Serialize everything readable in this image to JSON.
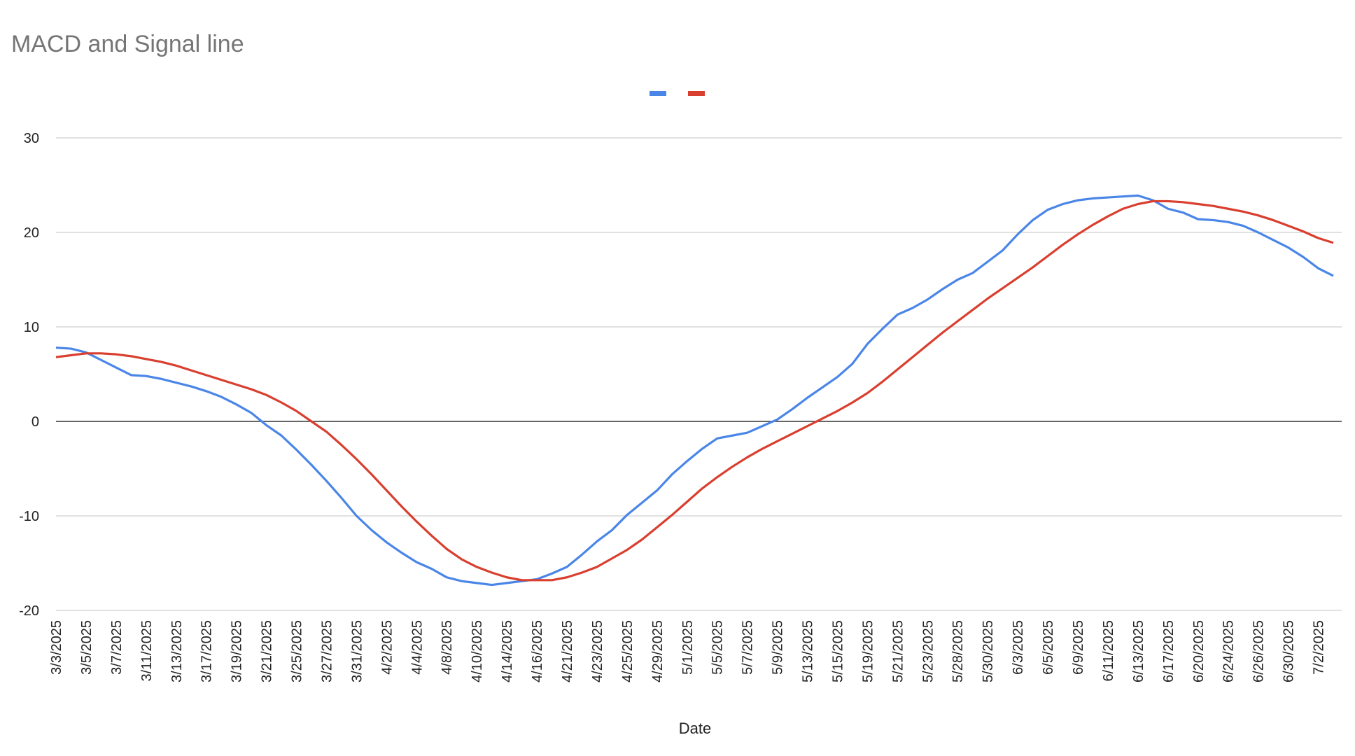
{
  "chart_data": {
    "type": "line",
    "title": "MACD and Signal line",
    "x_label": "Date",
    "categories": [
      "3/3/2025",
      null,
      "3/5/2025",
      null,
      "3/7/2025",
      null,
      "3/11/2025",
      null,
      "3/13/2025",
      null,
      "3/17/2025",
      null,
      "3/19/2025",
      null,
      "3/21/2025",
      null,
      "3/25/2025",
      null,
      "3/27/2025",
      null,
      "3/31/2025",
      null,
      "4/2/2025",
      null,
      "4/4/2025",
      null,
      "4/8/2025",
      null,
      "4/10/2025",
      null,
      "4/14/2025",
      null,
      "4/16/2025",
      null,
      "4/21/2025",
      null,
      "4/23/2025",
      null,
      "4/25/2025",
      null,
      "4/29/2025",
      null,
      "5/1/2025",
      null,
      "5/5/2025",
      null,
      "5/7/2025",
      null,
      "5/9/2025",
      null,
      "5/13/2025",
      null,
      "5/15/2025",
      null,
      "5/19/2025",
      null,
      "5/21/2025",
      null,
      "5/23/2025",
      null,
      "5/28/2025",
      null,
      "5/30/2025",
      null,
      "6/3/2025",
      null,
      "6/5/2025",
      null,
      "6/9/2025",
      null,
      "6/11/2025",
      null,
      "6/13/2025",
      null,
      "6/17/2025",
      null,
      "6/20/2025",
      null,
      "6/24/2025",
      null,
      "6/26/2025",
      null,
      "6/30/2025",
      null,
      "7/2/2025",
      null
    ],
    "series": [
      {
        "color": "#4a86e8",
        "values": [
          7.8,
          7.7,
          7.3,
          6.5,
          5.7,
          4.9,
          4.8,
          4.5,
          4.1,
          3.7,
          3.2,
          2.6,
          1.8,
          0.9,
          -0.4,
          -1.5,
          -3.0,
          -4.6,
          -6.3,
          -8.1,
          -10.0,
          -11.5,
          -12.8,
          -13.9,
          -14.9,
          -15.6,
          -16.5,
          -16.9,
          -17.1,
          -17.3,
          -17.1,
          -16.9,
          -16.7,
          -16.1,
          -15.4,
          -14.1,
          -12.7,
          -11.5,
          -9.9,
          -8.6,
          -7.3,
          -5.6,
          -4.2,
          -2.9,
          -1.8,
          -1.5,
          -1.2,
          -0.5,
          0.2,
          1.3,
          2.5,
          3.6,
          4.7,
          6.1,
          8.2,
          9.8,
          11.3,
          12.0,
          12.9,
          14.0,
          15.0,
          15.7,
          16.9,
          18.1,
          19.8,
          21.3,
          22.4,
          23.0,
          23.4,
          23.6,
          23.7,
          23.8,
          23.9,
          23.4,
          22.5,
          22.1,
          21.4,
          21.3,
          21.1,
          20.7,
          20.0,
          19.2,
          18.4,
          17.4,
          16.2,
          15.4
        ]
      },
      {
        "color": "#d93f2f",
        "values": [
          6.8,
          7.0,
          7.2,
          7.2,
          7.1,
          6.9,
          6.6,
          6.3,
          5.9,
          5.4,
          4.9,
          4.4,
          3.9,
          3.4,
          2.8,
          2.0,
          1.1,
          0.0,
          -1.1,
          -2.5,
          -4.0,
          -5.6,
          -7.3,
          -9.0,
          -10.6,
          -12.1,
          -13.5,
          -14.6,
          -15.4,
          -16.0,
          -16.5,
          -16.8,
          -16.8,
          -16.8,
          -16.5,
          -16.0,
          -15.4,
          -14.5,
          -13.6,
          -12.5,
          -11.2,
          -9.9,
          -8.5,
          -7.1,
          -5.9,
          -4.8,
          -3.8,
          -2.9,
          -2.1,
          -1.3,
          -0.5,
          0.3,
          1.1,
          2.0,
          3.0,
          4.2,
          5.5,
          6.8,
          8.1,
          9.4,
          10.6,
          11.8,
          13.0,
          14.1,
          15.2,
          16.3,
          17.5,
          18.7,
          19.8,
          20.8,
          21.7,
          22.5,
          23.0,
          23.3,
          23.3,
          23.2,
          23.0,
          22.8,
          22.5,
          22.2,
          21.8,
          21.3,
          20.7,
          20.1,
          19.4,
          18.9
        ]
      }
    ],
    "ylim": [
      -20,
      30
    ],
    "yticks": [
      -20,
      -10,
      0,
      10,
      20,
      30
    ],
    "grid": true
  }
}
